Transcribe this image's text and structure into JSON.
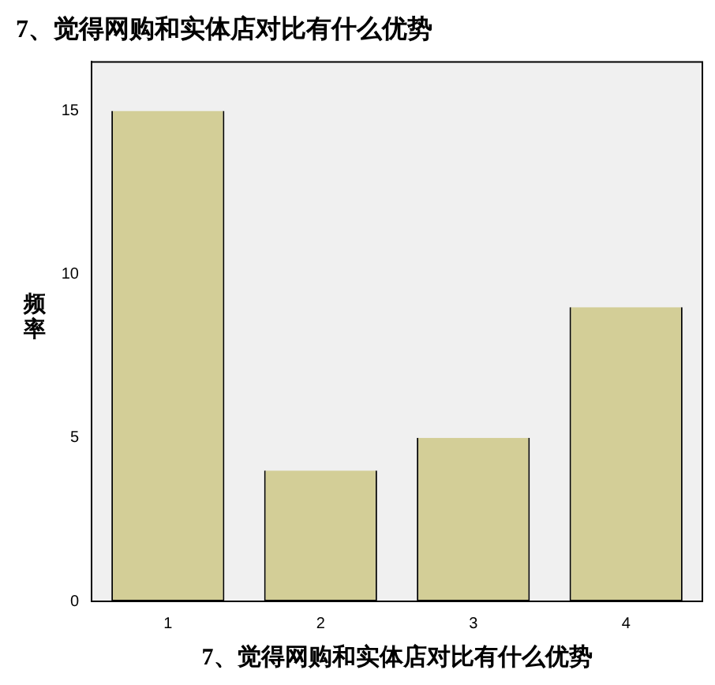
{
  "chart_data": {
    "type": "bar",
    "title": "7、觉得网购和实体店对比有什么优势",
    "xlabel": "7、觉得网购和实体店对比有什么优势",
    "ylabel": "频率",
    "categories": [
      "1",
      "2",
      "3",
      "4"
    ],
    "values": [
      15,
      4,
      5,
      9
    ],
    "color": "#d3ce97",
    "ylim": [
      0,
      16.5
    ],
    "yticks": [
      0,
      5,
      10,
      15
    ],
    "grid": false,
    "legend": false
  }
}
